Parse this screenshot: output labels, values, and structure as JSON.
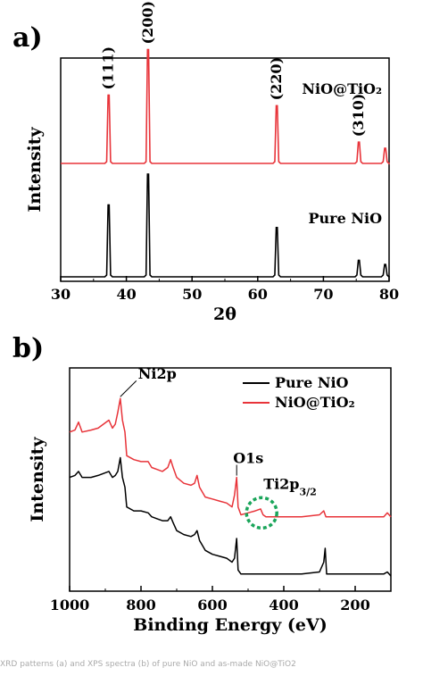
{
  "caption": "XRD patterns (a) and XPS spectra (b) of pure NiO and as-made NiO@TiO2",
  "chart_data": [
    {
      "panel": "a)",
      "type": "line",
      "xlabel": "2θ",
      "ylabel": "Intensity",
      "xlim": [
        30,
        80
      ],
      "xticks": [
        "30",
        "40",
        "50",
        "60",
        "70",
        "80"
      ],
      "series": [
        {
          "name": "NiO@TiO₂",
          "color": "#e8343a",
          "peaks": [
            {
              "x": 37.3,
              "h": 0.45
            },
            {
              "x": 43.3,
              "h": 0.75
            },
            {
              "x": 62.9,
              "h": 0.38
            },
            {
              "x": 75.4,
              "h": 0.14
            },
            {
              "x": 79.4,
              "h": 0.1
            }
          ]
        },
        {
          "name": "Pure NiO",
          "color": "#000000",
          "peaks": [
            {
              "x": 37.3,
              "h": 0.7
            },
            {
              "x": 43.3,
              "h": 1.0
            },
            {
              "x": 62.9,
              "h": 0.48
            },
            {
              "x": 75.4,
              "h": 0.16
            },
            {
              "x": 79.4,
              "h": 0.12
            }
          ]
        }
      ],
      "peak_labels": [
        {
          "x": 37.3,
          "text": "(111)"
        },
        {
          "x": 43.3,
          "text": "(200)"
        },
        {
          "x": 62.9,
          "text": "(220)"
        },
        {
          "x": 75.4,
          "text": "(310)"
        }
      ]
    },
    {
      "panel": "b)",
      "type": "line",
      "xlabel": "Binding Energy (eV)",
      "ylabel": "Intensity",
      "xlim": [
        1000,
        100
      ],
      "xticks": [
        "1000",
        "800",
        "600",
        "400",
        "200"
      ],
      "legend": [
        {
          "name": "Pure NiO",
          "color": "#000000"
        },
        {
          "name": "NiO@TiO₂",
          "color": "#e8343a"
        }
      ],
      "series": [
        {
          "name": "NiO@TiO₂",
          "color": "#e8343a",
          "points": [
            [
              1000,
              0.78
            ],
            [
              985,
              0.79
            ],
            [
              975,
              0.83
            ],
            [
              965,
              0.78
            ],
            [
              940,
              0.79
            ],
            [
              920,
              0.8
            ],
            [
              890,
              0.84
            ],
            [
              880,
              0.8
            ],
            [
              872,
              0.82
            ],
            [
              865,
              0.88
            ],
            [
              858,
              0.95
            ],
            [
              852,
              0.84
            ],
            [
              845,
              0.78
            ],
            [
              840,
              0.66
            ],
            [
              820,
              0.64
            ],
            [
              800,
              0.63
            ],
            [
              780,
              0.63
            ],
            [
              770,
              0.6
            ],
            [
              755,
              0.59
            ],
            [
              740,
              0.58
            ],
            [
              725,
              0.6
            ],
            [
              717,
              0.64
            ],
            [
              710,
              0.6
            ],
            [
              700,
              0.55
            ],
            [
              680,
              0.52
            ],
            [
              660,
              0.51
            ],
            [
              650,
              0.52
            ],
            [
              643,
              0.56
            ],
            [
              636,
              0.5
            ],
            [
              620,
              0.45
            ],
            [
              600,
              0.44
            ],
            [
              580,
              0.43
            ],
            [
              560,
              0.42
            ],
            [
              545,
              0.4
            ],
            [
              538,
              0.46
            ],
            [
              532,
              0.55
            ],
            [
              528,
              0.4
            ],
            [
              520,
              0.36
            ],
            [
              500,
              0.37
            ],
            [
              480,
              0.38
            ],
            [
              465,
              0.39
            ],
            [
              458,
              0.36
            ],
            [
              450,
              0.35
            ],
            [
              400,
              0.35
            ],
            [
              350,
              0.35
            ],
            [
              300,
              0.36
            ],
            [
              288,
              0.38
            ],
            [
              282,
              0.35
            ],
            [
              250,
              0.35
            ],
            [
              200,
              0.35
            ],
            [
              150,
              0.35
            ],
            [
              120,
              0.35
            ],
            [
              110,
              0.37
            ],
            [
              100,
              0.35
            ]
          ]
        },
        {
          "name": "Pure NiO",
          "color": "#000000",
          "points": [
            [
              1000,
              0.55
            ],
            [
              985,
              0.56
            ],
            [
              975,
              0.58
            ],
            [
              965,
              0.55
            ],
            [
              940,
              0.55
            ],
            [
              920,
              0.56
            ],
            [
              890,
              0.58
            ],
            [
              880,
              0.55
            ],
            [
              872,
              0.56
            ],
            [
              865,
              0.58
            ],
            [
              858,
              0.65
            ],
            [
              852,
              0.55
            ],
            [
              845,
              0.5
            ],
            [
              840,
              0.4
            ],
            [
              820,
              0.38
            ],
            [
              800,
              0.38
            ],
            [
              780,
              0.37
            ],
            [
              770,
              0.35
            ],
            [
              755,
              0.34
            ],
            [
              740,
              0.33
            ],
            [
              725,
              0.33
            ],
            [
              717,
              0.35
            ],
            [
              710,
              0.32
            ],
            [
              700,
              0.28
            ],
            [
              680,
              0.26
            ],
            [
              660,
              0.25
            ],
            [
              650,
              0.26
            ],
            [
              643,
              0.28
            ],
            [
              636,
              0.23
            ],
            [
              620,
              0.18
            ],
            [
              600,
              0.16
            ],
            [
              580,
              0.15
            ],
            [
              560,
              0.14
            ],
            [
              545,
              0.12
            ],
            [
              538,
              0.14
            ],
            [
              532,
              0.24
            ],
            [
              528,
              0.08
            ],
            [
              520,
              0.06
            ],
            [
              500,
              0.06
            ],
            [
              480,
              0.06
            ],
            [
              460,
              0.06
            ],
            [
              400,
              0.06
            ],
            [
              350,
              0.06
            ],
            [
              300,
              0.07
            ],
            [
              288,
              0.12
            ],
            [
              284,
              0.19
            ],
            [
              280,
              0.06
            ],
            [
              250,
              0.06
            ],
            [
              200,
              0.06
            ],
            [
              150,
              0.06
            ],
            [
              120,
              0.06
            ],
            [
              110,
              0.07
            ],
            [
              100,
              0.05
            ]
          ]
        }
      ],
      "annotations": [
        {
          "text": "Ni2p",
          "x": 858
        },
        {
          "text": "O1s",
          "x": 532
        },
        {
          "text": "Ti2p",
          "sub": "3/2",
          "x": 462
        }
      ],
      "highlight": {
        "shape": "dashed-circle",
        "color": "#1aa55a",
        "x": 462
      }
    }
  ]
}
